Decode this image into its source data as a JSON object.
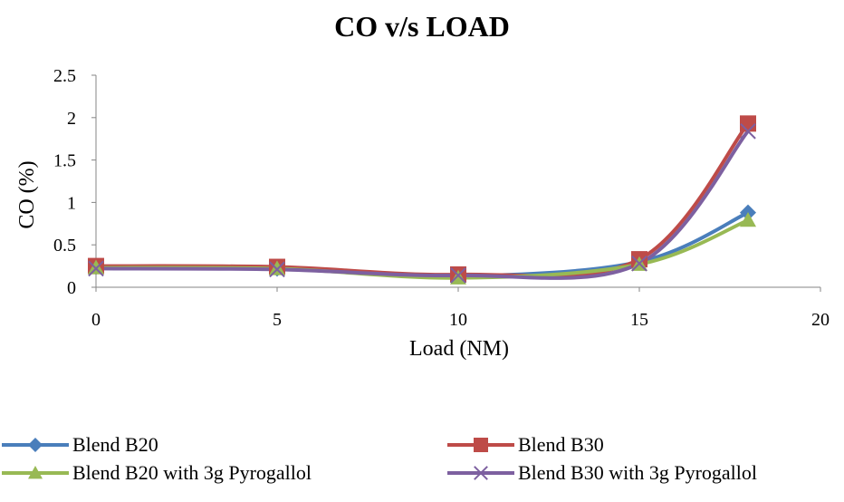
{
  "chart_data": {
    "type": "line",
    "title": "CO v/s LOAD",
    "xlabel": "Load (NM)",
    "ylabel": "CO (%)",
    "xlim": [
      0,
      20
    ],
    "ylim": [
      0,
      2.5
    ],
    "x_ticks": [
      "0",
      "5",
      "10",
      "15",
      "20"
    ],
    "y_ticks": [
      "0",
      "0.5",
      "1",
      "1.5",
      "2",
      "2.5"
    ],
    "grid": false,
    "smooth": true,
    "legend_position": "bottom",
    "series": [
      {
        "name": "Blend B20",
        "color": "#4a7ebb",
        "marker": "diamond",
        "points": [
          [
            0,
            0.24
          ],
          [
            5,
            0.22
          ],
          [
            10,
            0.13
          ],
          [
            15,
            0.3
          ],
          [
            18,
            0.88
          ]
        ]
      },
      {
        "name": "Blend B30",
        "color": "#be4b48",
        "marker": "square",
        "points": [
          [
            0,
            0.25
          ],
          [
            5,
            0.24
          ],
          [
            10,
            0.15
          ],
          [
            15,
            0.33
          ],
          [
            18,
            1.93
          ]
        ]
      },
      {
        "name": "Blend B20 with 3g Pyrogallol",
        "color": "#98b954",
        "marker": "triangle",
        "points": [
          [
            0,
            0.23
          ],
          [
            5,
            0.22
          ],
          [
            10,
            0.11
          ],
          [
            15,
            0.27
          ],
          [
            18,
            0.79
          ]
        ]
      },
      {
        "name": "Blend B30 with 3g Pyrogallol",
        "color": "#7d60a0",
        "marker": "x",
        "points": [
          [
            0,
            0.22
          ],
          [
            5,
            0.21
          ],
          [
            10,
            0.14
          ],
          [
            15,
            0.28
          ],
          [
            18,
            1.84
          ]
        ]
      }
    ]
  }
}
